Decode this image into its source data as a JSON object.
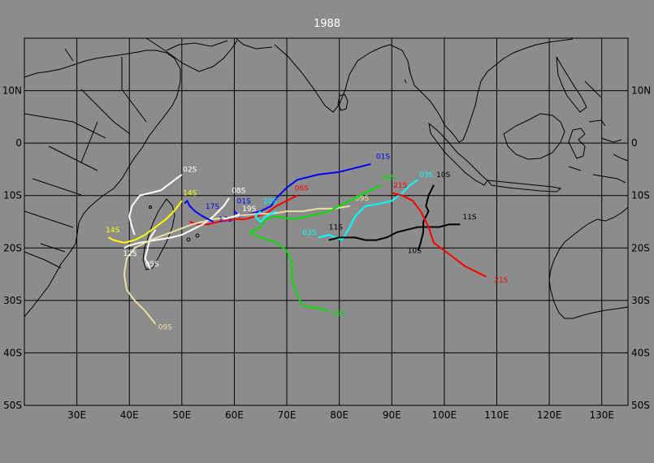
{
  "title": "1988",
  "x_labels": [
    "30E",
    "40E",
    "50E",
    "60E",
    "70E",
    "80E",
    "90E",
    "100E",
    "110E",
    "120E",
    "130E"
  ],
  "y_labels_left": [
    "10N",
    "0",
    "10S",
    "20S",
    "30S",
    "40S",
    "50S"
  ],
  "y_labels_right": [
    "10N",
    "0",
    "10S",
    "20S",
    "30S",
    "40S",
    "50S"
  ],
  "colors": {
    "background": "#8c8c8c",
    "grid": "#000000",
    "coast": "#000000",
    "title": "#ffffff"
  },
  "tracks": [
    {
      "id": "01S",
      "color": "#0000ff",
      "points": [
        [
          86,
          -4
        ],
        [
          84,
          -4.5
        ],
        [
          80,
          -5.5
        ],
        [
          76,
          -6
        ],
        [
          72,
          -7
        ],
        [
          70,
          -8.5
        ],
        [
          68,
          -10.5
        ],
        [
          67,
          -12
        ],
        [
          65,
          -13
        ]
      ],
      "label": "01S",
      "label_at": [
        87,
        -3
      ]
    },
    {
      "id": "01S-b",
      "color": "#0000ff",
      "points": [
        [
          65,
          -13
        ],
        [
          63,
          -13.5
        ],
        [
          61,
          -14
        ],
        [
          60,
          -13
        ]
      ],
      "label": "01S",
      "label_at": [
        60.5,
        -11.5
      ]
    },
    {
      "id": "02S",
      "color": "#ffffff",
      "points": [
        [
          50,
          -6
        ],
        [
          48,
          -7.5
        ],
        [
          46,
          -9
        ],
        [
          44,
          -9.5
        ],
        [
          42,
          -10
        ],
        [
          40.5,
          -12
        ],
        [
          40,
          -14
        ],
        [
          40.5,
          -16
        ],
        [
          41,
          -17.5
        ]
      ],
      "label": "02S",
      "label_at": [
        50.2,
        -5.5
      ]
    },
    {
      "id": "03S",
      "color": "#00ffff",
      "points": [
        [
          95,
          -7
        ],
        [
          93.5,
          -8
        ],
        [
          92,
          -9.5
        ],
        [
          90,
          -11
        ],
        [
          88,
          -11.5
        ],
        [
          85,
          -12
        ],
        [
          83,
          -14
        ],
        [
          82,
          -16
        ],
        [
          80.5,
          -18.5
        ],
        [
          78,
          -17.5
        ],
        [
          76,
          -18
        ]
      ],
      "label": "03S",
      "label_at": [
        95.2,
        -6.5
      ]
    },
    {
      "id": "03S-label2",
      "color": "#00ffff",
      "points": [],
      "label": "03S",
      "label_at": [
        73,
        -17.5
      ]
    },
    {
      "id": "05S",
      "color": "#ffffff",
      "points": [
        [
          45,
          -16.5
        ],
        [
          44,
          -18
        ],
        [
          43.5,
          -20
        ],
        [
          43,
          -22
        ],
        [
          44,
          -24
        ]
      ],
      "label": "05S",
      "label_at": [
        43,
        -23.5
      ]
    },
    {
      "id": "06S",
      "color": "#ff0000",
      "points": [
        [
          72,
          -10
        ],
        [
          70,
          -11
        ],
        [
          68,
          -12
        ],
        [
          66,
          -13.5
        ],
        [
          64,
          -14
        ],
        [
          62,
          -14.5
        ],
        [
          60,
          -14.5
        ],
        [
          57,
          -15
        ],
        [
          55,
          -15.5
        ],
        [
          53,
          -15.5
        ],
        [
          51.5,
          -15
        ]
      ],
      "label": "06S",
      "label_at": [
        71.5,
        -9
      ]
    },
    {
      "id": "08S",
      "color": "#ffffff",
      "points": [
        [
          59,
          -10.5
        ],
        [
          58,
          -12
        ],
        [
          56,
          -14
        ],
        [
          54,
          -15.5
        ],
        [
          52,
          -16.5
        ],
        [
          50,
          -17.5
        ],
        [
          48,
          -18
        ],
        [
          45,
          -18.5
        ],
        [
          42,
          -19
        ]
      ],
      "label": "08S",
      "label_at": [
        59.5,
        -9.5
      ]
    },
    {
      "id": "09S",
      "color": "#e8e0a0",
      "points": [
        [
          82,
          -12
        ],
        [
          79,
          -12.5
        ],
        [
          76,
          -12.5
        ],
        [
          73,
          -13
        ],
        [
          70,
          -13
        ],
        [
          67,
          -13.5
        ],
        [
          64,
          -13.5
        ],
        [
          60,
          -14
        ],
        [
          56,
          -14.5
        ],
        [
          52,
          -15.5
        ],
        [
          48,
          -17
        ],
        [
          44,
          -18.5
        ],
        [
          41,
          -20
        ],
        [
          39.5,
          -22
        ],
        [
          39,
          -25
        ],
        [
          39.5,
          -28
        ],
        [
          41,
          -30
        ],
        [
          43,
          -32
        ],
        [
          45,
          -34.5
        ]
      ],
      "label": "09S",
      "label_at": [
        83,
        -11
      ],
      "label2": "09S",
      "label2_at": [
        45.5,
        -35.5
      ]
    },
    {
      "id": "10S",
      "color": "#000000",
      "points": [
        [
          98,
          -8
        ],
        [
          97,
          -10
        ],
        [
          96.5,
          -12
        ],
        [
          97,
          -13
        ],
        [
          96,
          -15
        ],
        [
          96,
          -17
        ],
        [
          95.5,
          -19
        ],
        [
          95,
          -20.5
        ]
      ],
      "label": "10S",
      "label_at": [
        98.5,
        -6.5
      ],
      "label2": "10S",
      "label2_at": [
        93,
        -21
      ]
    },
    {
      "id": "11S",
      "color": "#000000",
      "points": [
        [
          103,
          -15.5
        ],
        [
          101,
          -15.5
        ],
        [
          99,
          -16
        ],
        [
          97,
          -16
        ],
        [
          95,
          -16
        ],
        [
          93,
          -16.5
        ],
        [
          91,
          -17
        ],
        [
          89,
          -18
        ],
        [
          87,
          -18.5
        ],
        [
          85,
          -18.5
        ],
        [
          83,
          -18
        ],
        [
          80,
          -18
        ],
        [
          78,
          -18.5
        ]
      ],
      "label": "11S",
      "label_at": [
        103.5,
        -14.5
      ],
      "label2": "11S",
      "label2_at": [
        78,
        -16.5
      ]
    },
    {
      "id": "12S",
      "color": "#ffffff",
      "points": [
        [
          42,
          -19
        ],
        [
          40,
          -19.5
        ],
        [
          39,
          -20
        ]
      ],
      "label": "12S",
      "label_at": [
        38.8,
        -21.5
      ]
    },
    {
      "id": "14S",
      "color": "#ffff00",
      "points": [
        [
          50,
          -11
        ],
        [
          48.5,
          -13
        ],
        [
          47,
          -14.5
        ],
        [
          45,
          -16
        ],
        [
          43,
          -17.5
        ],
        [
          41,
          -18.5
        ],
        [
          39,
          -19
        ],
        [
          37,
          -18.5
        ],
        [
          36,
          -18
        ]
      ],
      "label": "14S",
      "label_at": [
        50.2,
        -10
      ],
      "label2": "14S",
      "label2_at": [
        35.5,
        -17
      ]
    },
    {
      "id": "16S",
      "color": "#00e000",
      "points": [
        [
          88,
          -8
        ],
        [
          86,
          -9
        ],
        [
          84,
          -10
        ],
        [
          82,
          -11
        ],
        [
          80,
          -12
        ],
        [
          78,
          -13
        ],
        [
          74,
          -14
        ],
        [
          71,
          -14.5
        ],
        [
          68,
          -14
        ],
        [
          66,
          -14.5
        ],
        [
          65,
          -16
        ],
        [
          63,
          -17
        ],
        [
          65,
          -18
        ],
        [
          68,
          -19
        ],
        [
          70,
          -20.5
        ],
        [
          71,
          -23
        ],
        [
          71,
          -26
        ],
        [
          72,
          -29
        ],
        [
          73,
          -31
        ],
        [
          76,
          -31.5
        ],
        [
          78,
          -32
        ]
      ],
      "label": "16S",
      "label_at": [
        88,
        -7
      ],
      "label2": "16S",
      "label2_at": [
        78.5,
        -33
      ]
    },
    {
      "id": "17S",
      "color": "#0000ff",
      "points": [
        [
          56,
          -15
        ],
        [
          54,
          -14
        ],
        [
          52.5,
          -13
        ],
        [
          51.5,
          -12
        ],
        [
          51,
          -11
        ],
        [
          50.5,
          -11.5
        ]
      ],
      "label": "17S",
      "label_at": [
        54.5,
        -12.5
      ],
      "label2": "17S",
      "label2_at": [
        57,
        -15
      ]
    },
    {
      "id": "19S",
      "color": "#ffffff",
      "points": [
        [
          61,
          -13.5
        ],
        [
          60,
          -14
        ],
        [
          58,
          -14.5
        ]
      ],
      "label": "19S",
      "label_at": [
        61.5,
        -13
      ]
    },
    {
      "id": "20S",
      "color": "#00ffff",
      "points": [
        [
          68,
          -13
        ],
        [
          67,
          -13.5
        ],
        [
          66,
          -14
        ],
        [
          65,
          -15
        ],
        [
          64,
          -14
        ],
        [
          65,
          -13
        ]
      ],
      "label": "20S",
      "label_at": [
        65.5,
        -11.5
      ]
    },
    {
      "id": "21S",
      "color": "#ff0000",
      "points": [
        [
          90,
          -9.5
        ],
        [
          92,
          -10
        ],
        [
          94,
          -11
        ],
        [
          95.5,
          -13
        ],
        [
          97,
          -16
        ],
        [
          98,
          -19
        ],
        [
          100,
          -20.5
        ],
        [
          102,
          -22
        ],
        [
          104,
          -23.5
        ],
        [
          106,
          -24.5
        ],
        [
          108,
          -25.5
        ]
      ],
      "label": "21S",
      "label_at": [
        90.3,
        -8.5
      ],
      "label2": "21S",
      "label2_at": [
        109.5,
        -26.5
      ]
    }
  ]
}
